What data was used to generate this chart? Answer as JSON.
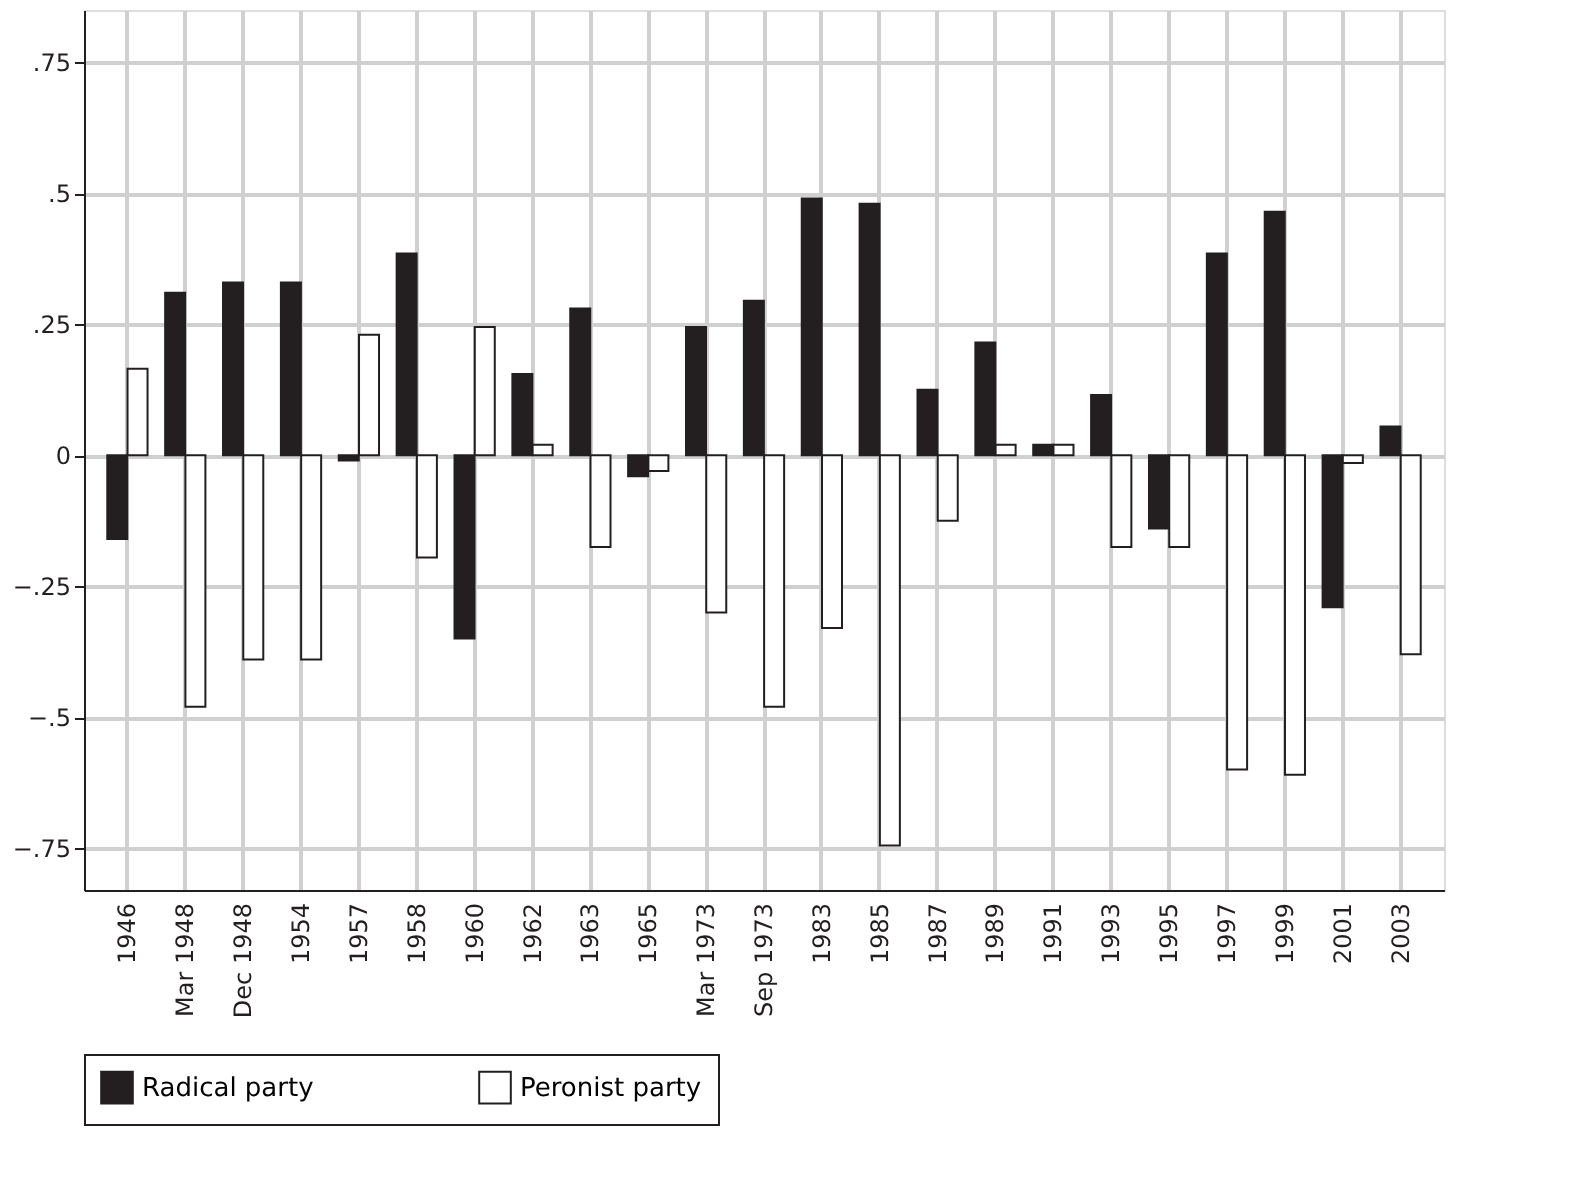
{
  "chart_data": {
    "type": "bar",
    "categories": [
      "1946",
      "Mar 1948",
      "Dec 1948",
      "1954",
      "1957",
      "1958",
      "1960",
      "1962",
      "1963",
      "1965",
      "Mar 1973",
      "Sep 1973",
      "1983",
      "1985",
      "1987",
      "1989",
      "1991",
      "1993",
      "1995",
      "1997",
      "1999",
      "2001",
      "2003"
    ],
    "series": [
      {
        "name": "Radical party",
        "color": "#231f20",
        "values": [
          -0.16,
          0.31,
          0.33,
          0.33,
          -0.01,
          0.385,
          -0.35,
          0.155,
          0.28,
          -0.04,
          0.245,
          0.295,
          0.49,
          0.48,
          0.125,
          0.215,
          0.02,
          0.115,
          -0.14,
          0.385,
          0.465,
          -0.29,
          0.055
        ]
      },
      {
        "name": "Peronist party",
        "color": "#ffffff",
        "values": [
          0.165,
          -0.48,
          -0.39,
          -0.39,
          0.23,
          -0.195,
          0.245,
          0.02,
          -0.175,
          -0.03,
          -0.3,
          -0.48,
          -0.33,
          -0.745,
          -0.125,
          0.02,
          0.02,
          -0.175,
          -0.175,
          -0.6,
          -0.61,
          -0.015,
          -0.38
        ]
      }
    ],
    "ylim": [
      -0.83,
      0.85
    ],
    "yticks": [
      {
        "value": -0.75,
        "label": "−.75"
      },
      {
        "value": -0.5,
        "label": "−.5"
      },
      {
        "value": -0.25,
        "label": "−.25"
      },
      0,
      {
        "value": 0.25,
        "label": ".25"
      },
      {
        "value": 0.5,
        "label": ".5"
      },
      {
        "value": 0.75,
        "label": ".75"
      }
    ],
    "grid": true,
    "legend": "bottom"
  }
}
